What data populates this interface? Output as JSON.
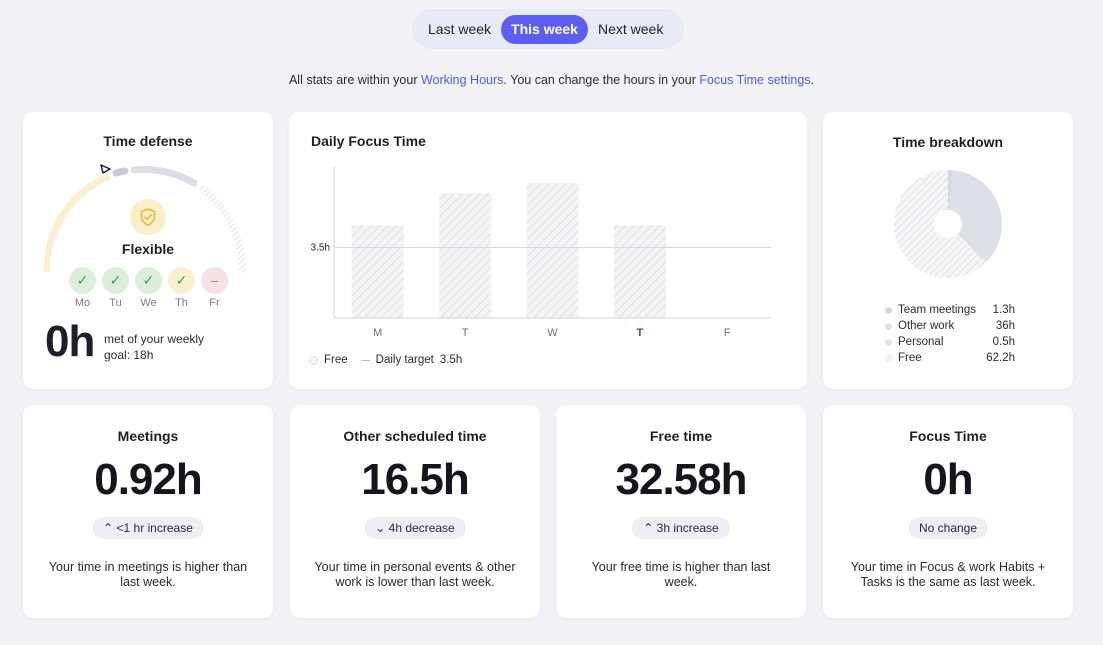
{
  "week_switch": {
    "tabs": [
      {
        "label": "Last week"
      },
      {
        "label": "This week"
      },
      {
        "label": "Next week"
      }
    ],
    "active_index": 1,
    "accent_color": "#5b5ef0"
  },
  "notice": {
    "before": "All stats are within your ",
    "link1": "Working Hours",
    "middle": ". You can change the hours in your ",
    "link2": "Focus Time settings",
    "after": "."
  },
  "time_defense": {
    "title": "Time defense",
    "level_label": "Flexible",
    "icon": "shield-check-icon",
    "days": [
      {
        "label": "Mo",
        "status": "met"
      },
      {
        "label": "Tu",
        "status": "met"
      },
      {
        "label": "We",
        "status": "met"
      },
      {
        "label": "Th",
        "status": "partial"
      },
      {
        "label": "Fr",
        "status": "missed"
      }
    ],
    "goal_value": "0h",
    "goal_text": "met of your weekly goal: 18h"
  },
  "daily_focus": {
    "title": "Daily Focus Time",
    "legend": {
      "free_label": "Free",
      "target_label": "Daily target",
      "target_value": "3.5h"
    },
    "chart_data": {
      "type": "bar",
      "categories": [
        "M",
        "T",
        "W",
        "T",
        "F"
      ],
      "series": [
        {
          "name": "Free",
          "values": [
            4.6,
            6.2,
            6.7,
            4.6,
            0
          ]
        }
      ],
      "target": 3.5,
      "target_label": "3.5h",
      "ylim": [
        0,
        7.5
      ],
      "highlight_index": 3,
      "highlight_color": "#3b44b8"
    }
  },
  "time_breakdown": {
    "title": "Time breakdown",
    "items": [
      {
        "name": "Team meetings",
        "value": "1.3h",
        "num": 1.3,
        "color": "#d5d8e0"
      },
      {
        "name": "Other work",
        "value": "36h",
        "num": 36,
        "color": "#dde0e8"
      },
      {
        "name": "Personal",
        "value": "0.5h",
        "num": 0.5,
        "color": "#e6e6ea"
      },
      {
        "name": "Free",
        "value": "62.2h",
        "num": 62.2,
        "color": "hatched"
      }
    ]
  },
  "stats": [
    {
      "title": "Meetings",
      "value": "0.92h",
      "trend": "up",
      "pill": "<1 hr increase",
      "desc": "Your time in meetings is higher than last week."
    },
    {
      "title": "Other scheduled time",
      "value": "16.5h",
      "trend": "down",
      "pill": "4h decrease",
      "desc": "Your time in personal events & other work is lower than last week."
    },
    {
      "title": "Free time",
      "value": "32.58h",
      "trend": "up",
      "pill": "3h increase",
      "desc": "Your free time is higher than last week."
    },
    {
      "title": "Focus Time",
      "value": "0h",
      "trend": "none",
      "pill": "No change",
      "desc": "Your time in Focus & work Habits + Tasks is the same as last week."
    }
  ]
}
